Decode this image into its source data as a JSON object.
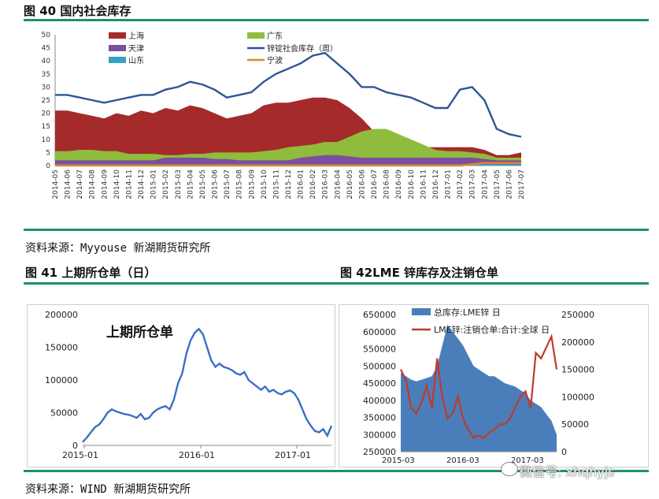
{
  "fig40": {
    "title": "图 40 国内社会库存",
    "source": "资料来源：Myyouse  新湖期货研究所"
  },
  "fig41": {
    "title": "图 41 上期所仓单（日）",
    "inner_title": "上期所仓单"
  },
  "fig42": {
    "title": "图 42LME 锌库存及注销仓单"
  },
  "bottom_source": "资料来源：WIND  新湖期货研究所",
  "watermark": "微信号: xhqhyjs",
  "colors": {
    "rule": "#1f8f73",
    "shanghai": "#a52a2a",
    "guangdong": "#8fbc3c",
    "tianjin": "#7b4fa0",
    "shandong": "#31a3c4",
    "total": "#2f5597",
    "ningbo": "#e8822a",
    "shfe_line": "#3a6fc4",
    "lme_area": "#4a7ebb",
    "lme_cancel": "#c0392b"
  },
  "chart_data": [
    {
      "type": "area",
      "x": [
        "2014-05",
        "2014-06",
        "2014-07",
        "2014-08",
        "2014-09",
        "2014-10",
        "2014-11",
        "2014-12",
        "2015-01",
        "2015-02",
        "2015-03",
        "2015-04",
        "2015-05",
        "2015-06",
        "2015-07",
        "2015-08",
        "2015-09",
        "2015-10",
        "2015-11",
        "2015-12",
        "2016-01",
        "2016-02",
        "2016-03",
        "2016-04",
        "2016-05",
        "2016-06",
        "2016-07",
        "2016-08",
        "2016-09",
        "2016-10",
        "2016-11",
        "2016-12",
        "2017-01",
        "2017-02",
        "2017-03",
        "2017-04",
        "2017-05",
        "2017-06",
        "2017-07"
      ],
      "ylim": [
        0,
        50
      ],
      "yticks": [
        0,
        5,
        10,
        15,
        20,
        25,
        30,
        35,
        40,
        45,
        50
      ],
      "legend_position": "top",
      "series": [
        {
          "name": "上海",
          "kind": "area",
          "values": [
            21,
            21,
            20,
            19,
            18,
            20,
            19,
            21,
            20,
            22,
            21,
            23,
            22,
            20,
            18,
            19,
            20,
            23,
            24,
            24,
            25,
            26,
            26,
            25,
            22,
            18,
            13,
            10,
            8,
            7,
            7,
            7,
            7,
            7,
            7,
            6,
            4,
            4,
            5
          ]
        },
        {
          "name": "广东",
          "kind": "area",
          "values": [
            5.5,
            5.5,
            6,
            6,
            5.5,
            5.5,
            4.5,
            4.5,
            4.5,
            4,
            4,
            4.5,
            4.5,
            5,
            5,
            5,
            5,
            5.5,
            6,
            7,
            7.5,
            8,
            9,
            9,
            11,
            13,
            14,
            14,
            12,
            10,
            8,
            6,
            5.5,
            5.5,
            5,
            4.5,
            3,
            3,
            3
          ]
        },
        {
          "name": "天津",
          "kind": "area",
          "values": [
            2,
            2,
            2,
            2,
            2,
            2,
            2,
            2,
            2,
            3,
            3,
            3,
            3,
            2.5,
            2.5,
            2,
            2,
            2,
            2,
            2,
            3,
            3.5,
            4,
            4,
            3.5,
            3,
            3,
            3,
            3,
            3,
            3,
            3,
            3,
            3,
            3,
            2.5,
            2,
            2,
            2
          ]
        },
        {
          "name": "山东",
          "kind": "area",
          "values": [
            0.5,
            0.5,
            0.5,
            0.5,
            0.5,
            0.5,
            0.5,
            0.5,
            0.5,
            0.5,
            0.5,
            0.5,
            0.5,
            0.5,
            0.5,
            0.5,
            0.5,
            0.5,
            0.5,
            0.5,
            0.5,
            0.5,
            0.5,
            0.5,
            0.5,
            0.5,
            0.5,
            0.5,
            0.5,
            0.5,
            0.5,
            0.5,
            0.5,
            0.5,
            0.5,
            0.5,
            0.5,
            0.5,
            0.5
          ]
        },
        {
          "name": "锌锭社会库存（周）",
          "kind": "line",
          "values": [
            27,
            27,
            26,
            25,
            24,
            25,
            26,
            27,
            27,
            29,
            30,
            32,
            31,
            29,
            26,
            27,
            28,
            32,
            35,
            37,
            39,
            42,
            43,
            39,
            35,
            30,
            30,
            28,
            27,
            26,
            24,
            22,
            22,
            29,
            30,
            25,
            14,
            12,
            11
          ]
        },
        {
          "name": "宁波",
          "kind": "line",
          "values": [
            0,
            0,
            0,
            0,
            0,
            0,
            0,
            0,
            0,
            0,
            0,
            0,
            0,
            0,
            0,
            0,
            0,
            0,
            0,
            0,
            0,
            0,
            0,
            0,
            0,
            0,
            0,
            0,
            0,
            0,
            0,
            0,
            0,
            0,
            0.5,
            1,
            1,
            1,
            1
          ]
        }
      ]
    },
    {
      "type": "line",
      "title": "上期所仓单",
      "x_ticks": [
        "2015-01",
        "2016-01",
        "2017-01"
      ],
      "ylim": [
        0,
        200000
      ],
      "yticks": [
        0,
        50000,
        100000,
        150000,
        200000
      ],
      "series": [
        {
          "name": "上期所仓单",
          "x": [
            0,
            0.5,
            1,
            1.5,
            2,
            2.5,
            3,
            3.5,
            4,
            4.5,
            5,
            5.5,
            6,
            6.5,
            7,
            7.5,
            8,
            8.5,
            9,
            9.5,
            10,
            10.5,
            11,
            11.5,
            12,
            12.5,
            13,
            13.5,
            14,
            14.5,
            15,
            15.5,
            16,
            16.5,
            17,
            17.5,
            18,
            18.5,
            19,
            19.5,
            20,
            20.5,
            21,
            21.5,
            22,
            22.5,
            23,
            23.5,
            24,
            24.5,
            25,
            25.5,
            26,
            26.5,
            27,
            27.5,
            28,
            28.5,
            29,
            29.5,
            30
          ],
          "values": [
            5000,
            12000,
            20000,
            28000,
            32000,
            40000,
            50000,
            55000,
            52000,
            50000,
            48000,
            47000,
            45000,
            42000,
            48000,
            40000,
            42000,
            50000,
            55000,
            58000,
            60000,
            55000,
            70000,
            95000,
            110000,
            140000,
            160000,
            172000,
            178000,
            170000,
            150000,
            130000,
            120000,
            125000,
            120000,
            118000,
            115000,
            110000,
            108000,
            112000,
            100000,
            95000,
            90000,
            85000,
            90000,
            82000,
            85000,
            80000,
            78000,
            82000,
            84000,
            80000,
            70000,
            55000,
            40000,
            30000,
            22000,
            20000,
            25000,
            15000,
            30000
          ]
        }
      ]
    },
    {
      "type": "area",
      "x_ticks": [
        "2015-03",
        "2016-03",
        "2017-03"
      ],
      "ylim": [
        250000,
        650000
      ],
      "yticks": [
        250000,
        300000,
        350000,
        400000,
        450000,
        500000,
        550000,
        600000,
        650000
      ],
      "ylim_right": [
        0,
        250000
      ],
      "yticks_right": [
        0,
        50000,
        100000,
        150000,
        200000,
        250000
      ],
      "legend_position": "top",
      "series": [
        {
          "name": "总库存:LME锌  日",
          "kind": "area",
          "axis": "left",
          "values": [
            480000,
            470000,
            460000,
            455000,
            460000,
            465000,
            470000,
            500000,
            560000,
            620000,
            600000,
            580000,
            560000,
            530000,
            500000,
            490000,
            480000,
            470000,
            470000,
            460000,
            450000,
            445000,
            440000,
            430000,
            420000,
            400000,
            390000,
            380000,
            360000,
            340000,
            300000
          ]
        },
        {
          "name": "LME锌:注销仓单:合计:全球  日",
          "kind": "line",
          "axis": "right",
          "values": [
            150000,
            130000,
            80000,
            70000,
            90000,
            120000,
            80000,
            170000,
            100000,
            60000,
            70000,
            100000,
            60000,
            40000,
            25000,
            30000,
            25000,
            35000,
            40000,
            50000,
            50000,
            60000,
            80000,
            100000,
            110000,
            80000,
            180000,
            170000,
            190000,
            210000,
            150000
          ]
        }
      ]
    }
  ]
}
